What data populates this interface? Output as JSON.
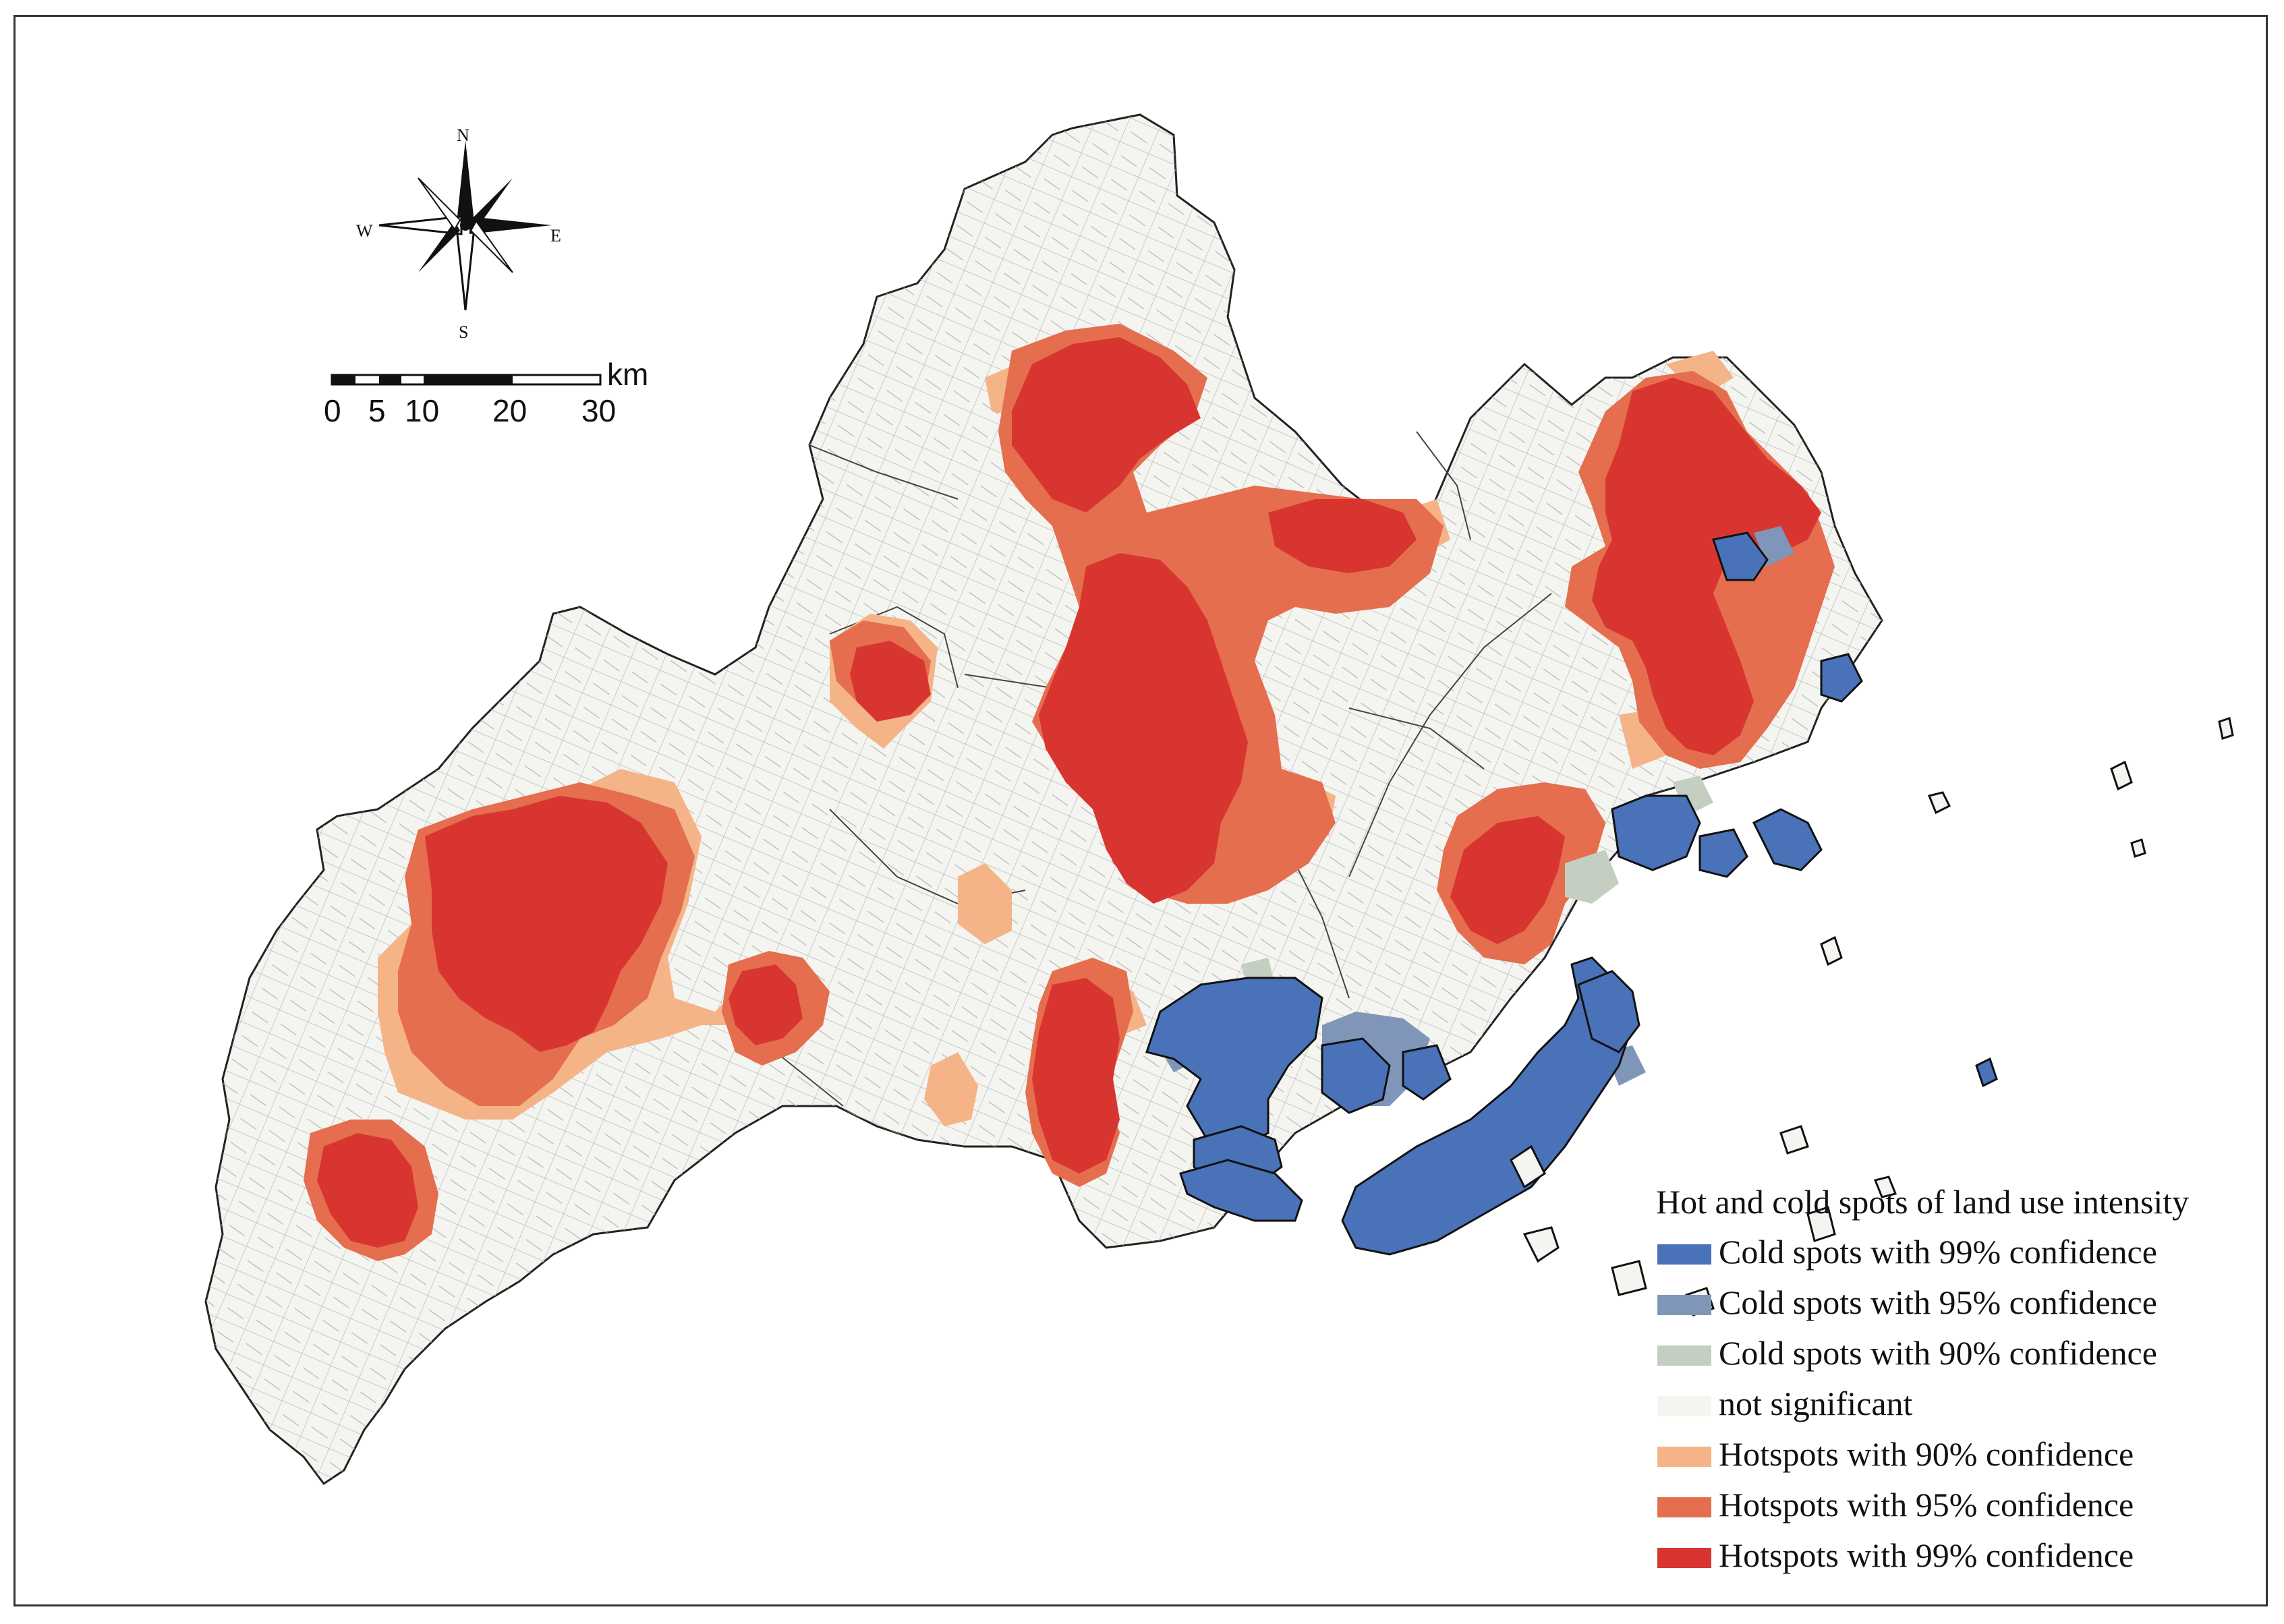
{
  "compass": {
    "north": "N",
    "south": "S",
    "east": "E",
    "west": "W"
  },
  "scale_bar": {
    "unit": "km",
    "ticks": [
      "0",
      "5",
      "10",
      "20",
      "30"
    ]
  },
  "legend": {
    "title": "Hot and cold spots of land use intensity",
    "items": [
      {
        "label": "Cold spots with 99% confidence",
        "color": "#4a72b8"
      },
      {
        "label": "Cold spots with 95% confidence",
        "color": "#8096b9"
      },
      {
        "label": "Cold spots with 90% confidence",
        "color": "#c4cfc2"
      },
      {
        "label": "not significant",
        "color": "#f4f4f0"
      },
      {
        "label": "Hotspots with 90% confidence",
        "color": "#f5b487"
      },
      {
        "label": "Hotspots with 95% confidence",
        "color": "#e56e4e"
      },
      {
        "label": "Hotspots with 99% confidence",
        "color": "#d83531"
      }
    ]
  }
}
